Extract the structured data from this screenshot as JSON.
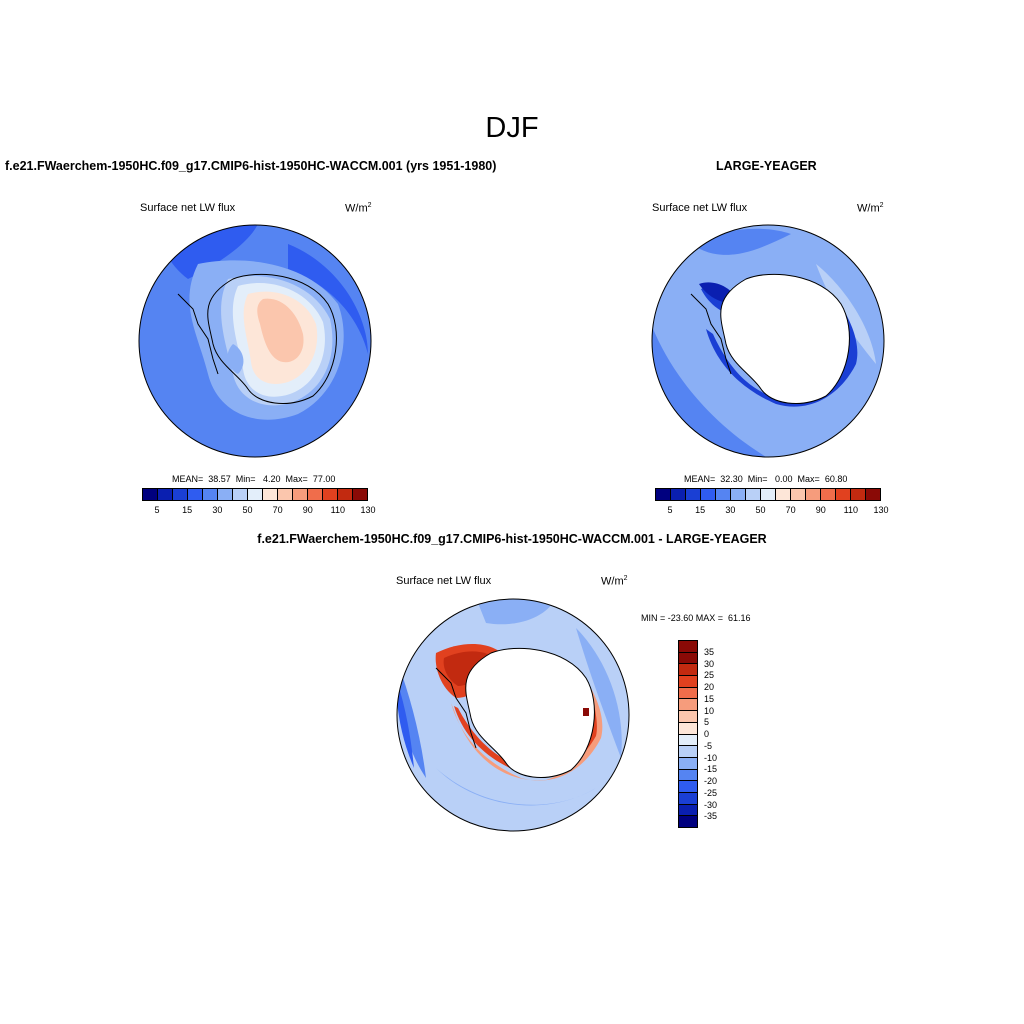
{
  "page_title": "DJF",
  "panels": [
    {
      "case_title": "f.e21.FWaerchem-1950HC.f09_g17.CMIP6-hist-1950HC-WACCM.001 (yrs 1951-1980)",
      "variable": "Surface net LW flux",
      "units_base": "W/m",
      "units_exp": "2",
      "stats": "MEAN=  38.57  Min=   4.20  Max=  77.00",
      "colorbar_labels": [
        "5",
        "15",
        "30",
        "50",
        "70",
        "90",
        "110",
        "130"
      ]
    },
    {
      "case_title": "LARGE-YEAGER",
      "variable": "Surface net LW flux",
      "units_base": "W/m",
      "units_exp": "2",
      "stats": "MEAN=  32.30  Min=   0.00  Max=  60.80",
      "colorbar_labels": [
        "5",
        "15",
        "30",
        "50",
        "70",
        "90",
        "110",
        "130"
      ]
    },
    {
      "case_title": "f.e21.FWaerchem-1950HC.f09_g17.CMIP6-hist-1950HC-WACCM.001 - LARGE-YEAGER",
      "variable": "Surface net LW flux",
      "units_base": "W/m",
      "units_exp": "2",
      "stats": "MIN = -23.60 MAX =  61.16",
      "colorbar_labels": [
        "35",
        "30",
        "25",
        "20",
        "15",
        "10",
        "5",
        "0",
        "-5",
        "-10",
        "-15",
        "-20",
        "-25",
        "-30",
        "-35"
      ]
    }
  ],
  "colors": {
    "abs_scale": [
      "#00007f",
      "#0a1fb0",
      "#1a3fd4",
      "#2f5cf0",
      "#5584f2",
      "#8aaff5",
      "#b9d0f7",
      "#e3eefa",
      "#fde6d8",
      "#fbc6ad",
      "#f69c7c",
      "#f06d4b",
      "#e1411f",
      "#c22a10",
      "#8a0a06"
    ],
    "diff_scale": [
      "#8a0a06",
      "#c22a10",
      "#e1411f",
      "#f06d4b",
      "#f69c7c",
      "#fbc6ad",
      "#fde6d8",
      "#e3eefa",
      "#b9d0f7",
      "#8aaff5",
      "#5584f2",
      "#2f5cf0",
      "#1a3fd4",
      "#0a1fb0",
      "#00007f"
    ]
  }
}
